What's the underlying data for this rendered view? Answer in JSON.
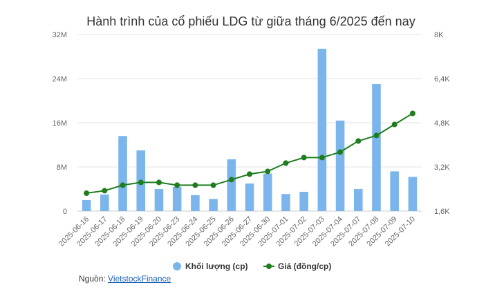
{
  "chart_data": {
    "type": "bar+line",
    "title": "Hành trình của cổ phiếu LDG từ giữa tháng 6/2025 đến nay",
    "categories": [
      "2025-06-16",
      "2025-06-17",
      "2025-06-18",
      "2025-06-19",
      "2025-06-20",
      "2025-06-23",
      "2025-06-24",
      "2025-06-25",
      "2025-06-26",
      "2025-06-27",
      "2025-06-30",
      "2025-07-01",
      "2025-07-02",
      "2025-07-03",
      "2025-07-04",
      "2025-07-07",
      "2025-07-08",
      "2025-07-09",
      "2025-07-10"
    ],
    "series": [
      {
        "name": "Khối lượng (cp)",
        "type": "bar",
        "axis": "left",
        "color": "#7cb5ec",
        "values": [
          2000000,
          3000000,
          13600000,
          11000000,
          4000000,
          4400000,
          2900000,
          2200000,
          9400000,
          5000000,
          6800000,
          3100000,
          3500000,
          29400000,
          16400000,
          4000000,
          23000000,
          7200000,
          6200000
        ]
      },
      {
        "name": "Giá (đồng/cp)",
        "type": "line",
        "axis": "right",
        "color": "#1f7d1f",
        "values": [
          2250,
          2340,
          2540,
          2640,
          2640,
          2540,
          2540,
          2540,
          2740,
          2940,
          3040,
          3340,
          3540,
          3540,
          3740,
          4140,
          4340,
          4740,
          5140
        ]
      }
    ],
    "y_left": {
      "min": 0,
      "max": 32000000,
      "ticks": [
        0,
        8000000,
        16000000,
        24000000,
        32000000
      ],
      "tick_labels": [
        "0",
        "8M",
        "16M",
        "24M",
        "32M"
      ]
    },
    "y_right": {
      "min": 1600,
      "max": 8000,
      "ticks": [
        1600,
        3200,
        4800,
        6400,
        8000
      ],
      "tick_labels": [
        "1,6K",
        "3,2K",
        "4,8K",
        "6,4K",
        "8K"
      ]
    },
    "legend_position": "bottom-center",
    "grid": "horizontal"
  },
  "source": {
    "label": "Nguồn: ",
    "link_text": "VietstockFinance"
  }
}
